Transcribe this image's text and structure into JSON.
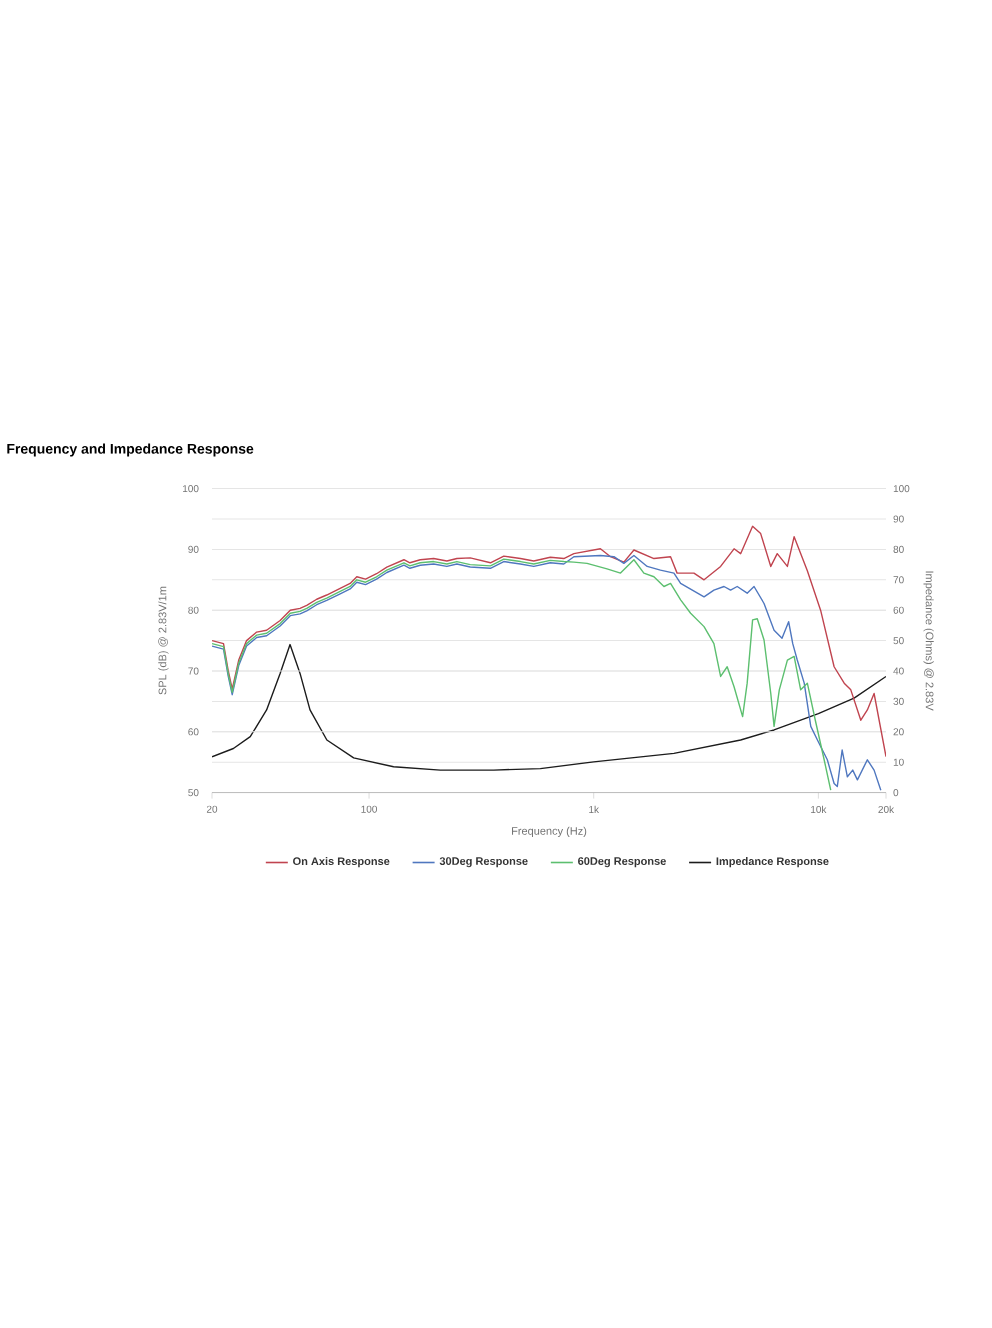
{
  "chart_data": {
    "type": "line",
    "title": "Frequency and Impedance Response",
    "xlabel": "Frequency (Hz)",
    "ylabel": "SPL (dB) @ 2.83V/1m",
    "y2label": "Impedance (Ohms) @ 2.83V",
    "log": "x",
    "xlim": [
      20,
      20000
    ],
    "xticks": [
      20,
      100,
      {
        "value": 1000,
        "label": "1k"
      },
      {
        "value": 10000,
        "label": "10k"
      },
      {
        "value": 20000,
        "label": "20k"
      }
    ],
    "ylim": [
      50,
      100
    ],
    "yticks": [
      50,
      60,
      70,
      80,
      90,
      100
    ],
    "y2lim": [
      0,
      100
    ],
    "y2ticks": [
      0,
      10,
      20,
      30,
      40,
      50,
      60,
      70,
      80,
      90,
      100
    ],
    "grid": "y",
    "legend": "bottom",
    "series": [
      {
        "name": "On Axis Response",
        "color": "#c0444f",
        "x": [
          20,
          22.5,
          23.6,
          24.6,
          26.3,
          28.5,
          31.6,
          35,
          40.2,
          44.6,
          49.3,
          52.8,
          58.5,
          64.8,
          74.4,
          82.4,
          88.2,
          96.5,
          108,
          120,
          143,
          152,
          169,
          194,
          222,
          246,
          282,
          347,
          398,
          472,
          541,
          641,
          736,
          816,
          1071,
          1188,
          1362,
          1510,
          1854,
          2198,
          2350,
          2793,
          3098,
          3672,
          4214,
          4508,
          5095,
          5535,
          6140,
          6560,
          7280,
          7800,
          8930,
          10230,
          11750,
          13030,
          13940,
          15450,
          16520,
          17700,
          20000
        ],
        "values": [
          75.0,
          74.5,
          70.1,
          67.0,
          71.8,
          75.0,
          76.4,
          76.7,
          78.3,
          80.0,
          80.3,
          80.8,
          81.8,
          82.5,
          83.6,
          84.4,
          85.5,
          85.1,
          86.0,
          87.1,
          88.3,
          87.8,
          88.3,
          88.5,
          88.1,
          88.5,
          88.6,
          87.8,
          88.9,
          88.5,
          88.1,
          88.7,
          88.5,
          89.3,
          90.1,
          88.8,
          87.9,
          89.9,
          88.5,
          88.8,
          86.1,
          86.1,
          85.0,
          87.2,
          90.1,
          89.3,
          93.8,
          92.6,
          87.2,
          89.3,
          87.2,
          92.1,
          86.5,
          80.0,
          70.7,
          68.0,
          66.9,
          61.9,
          63.6,
          66.3,
          55.9
        ]
      },
      {
        "name": "30Deg Response",
        "color": "#4f77bf",
        "x": [
          20,
          22.5,
          23.6,
          24.6,
          26.3,
          28.5,
          31.6,
          35,
          40.2,
          44.6,
          49.3,
          52.8,
          58.5,
          64.8,
          74.4,
          82.4,
          88.2,
          96.5,
          108,
          120,
          143,
          152,
          169,
          194,
          222,
          246,
          282,
          347,
          398,
          472,
          541,
          641,
          736,
          816,
          1071,
          1230,
          1362,
          1510,
          1730,
          1982,
          2276,
          2437,
          3098,
          3428,
          3802,
          4066,
          4352,
          4820,
          5172,
          5730,
          6350,
          6890,
          7374,
          7690,
          8054,
          8650,
          9250,
          9890,
          10960,
          11750,
          12140,
          12760,
          13460,
          14220,
          14920,
          16520,
          17700,
          18970
        ],
        "values": [
          74.1,
          73.6,
          69.2,
          66.1,
          70.9,
          74.1,
          75.5,
          75.8,
          77.4,
          79.1,
          79.4,
          79.9,
          80.9,
          81.6,
          82.7,
          83.5,
          84.6,
          84.2,
          85.1,
          86.2,
          87.4,
          86.9,
          87.4,
          87.6,
          87.2,
          87.6,
          87.1,
          86.9,
          88.0,
          87.6,
          87.2,
          87.8,
          87.6,
          88.8,
          89.0,
          88.8,
          87.7,
          89.0,
          87.2,
          86.6,
          86.1,
          84.4,
          82.2,
          83.3,
          83.9,
          83.3,
          83.9,
          82.8,
          83.9,
          81.1,
          76.7,
          75.4,
          78.1,
          74.5,
          71.8,
          68.0,
          60.9,
          58.7,
          55.4,
          51.5,
          51.0,
          57.0,
          52.6,
          53.7,
          52.1,
          55.4,
          53.7,
          50.4
        ]
      },
      {
        "name": "60Deg Response",
        "color": "#5cbf6f",
        "x": [
          20,
          22.5,
          23.6,
          24.6,
          26.3,
          28.5,
          31.6,
          35,
          40.2,
          44.6,
          49.3,
          52.8,
          58.5,
          64.8,
          74.4,
          82.4,
          88.2,
          96.5,
          108,
          120,
          143,
          152,
          169,
          194,
          222,
          246,
          282,
          347,
          398,
          472,
          541,
          641,
          736,
          816,
          934,
          1146,
          1316,
          1510,
          1672,
          1854,
          2054,
          2198,
          2437,
          2700,
          3098,
          3428,
          3548,
          3672,
          3928,
          4214,
          4600,
          4820,
          5095,
          5346,
          5730,
          6140,
          6350,
          6700,
          7280,
          7800,
          8340,
          8930,
          9690,
          10610,
          11350
        ],
        "values": [
          74.5,
          74.0,
          69.6,
          66.5,
          71.3,
          74.5,
          75.9,
          76.2,
          77.8,
          79.5,
          79.8,
          80.3,
          81.3,
          82.0,
          83.1,
          83.9,
          85.0,
          84.6,
          85.5,
          86.6,
          87.8,
          87.3,
          87.8,
          88.0,
          87.6,
          88.0,
          87.5,
          87.3,
          88.4,
          88.0,
          87.6,
          88.2,
          88.0,
          87.9,
          87.7,
          86.8,
          86.1,
          88.3,
          86.1,
          85.5,
          83.9,
          84.4,
          81.7,
          79.5,
          77.3,
          74.5,
          71.8,
          69.1,
          70.7,
          67.4,
          62.5,
          68.0,
          78.4,
          78.6,
          75.1,
          66.3,
          60.9,
          66.9,
          71.8,
          72.4,
          66.9,
          68.0,
          61.9,
          55.4,
          50.4
        ]
      },
      {
        "name": "Impedance Response",
        "color": "#1c1c1c",
        "axis": "y2",
        "x": [
          20,
          24.9,
          29.6,
          35,
          40.2,
          44.5,
          49.3,
          54.6,
          64.9,
          85.4,
          128.6,
          207.6,
          359,
          579,
          1000,
          2276,
          4508,
          6350,
          10000,
          14420,
          20000
        ],
        "values": [
          11.8,
          14.5,
          18.4,
          27.2,
          39.2,
          48.7,
          39.2,
          27.2,
          17.3,
          11.4,
          8.5,
          7.4,
          7.4,
          7.9,
          10.1,
          12.9,
          17.3,
          20.6,
          26,
          31.1,
          38.2
        ]
      }
    ]
  }
}
